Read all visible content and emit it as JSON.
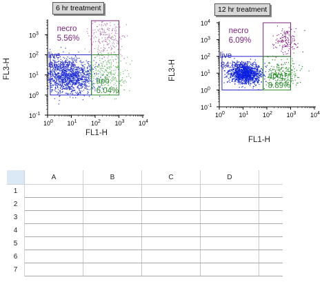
{
  "chart_data": [
    {
      "type": "scatter",
      "title": "6 hr treatment",
      "xlabel": "FL1-H",
      "ylabel": "FL3-H",
      "xscale": "log",
      "yscale": "log",
      "xlim": [
        1,
        10000
      ],
      "ylim": [
        0.1,
        5000
      ],
      "x_ticks": [
        "10",
        "10",
        "10",
        "10",
        "10"
      ],
      "x_tick_exponents": [
        "0",
        "1",
        "2",
        "3",
        "4"
      ],
      "y_ticks": [
        "10",
        "10",
        "10",
        "10",
        "10"
      ],
      "y_tick_exponents": [
        "-1",
        "0",
        "1",
        "2",
        "3"
      ],
      "grid": false,
      "gates": [
        {
          "name": "necro",
          "percent": "5.56%",
          "color": "#7a1f7a",
          "x_range": [
            70,
            1000
          ],
          "y_range": [
            100,
            5000
          ]
        },
        {
          "name": "live",
          "percent": "86.93%",
          "color": "#2424cc",
          "x_range": [
            1.3,
            70
          ],
          "y_range": [
            1,
            100
          ]
        },
        {
          "name": "apo",
          "percent": "6.04%",
          "color": "#2a8a2a",
          "x_range": [
            70,
            1000
          ],
          "y_range": [
            1,
            100
          ]
        }
      ],
      "populations": [
        {
          "gate": "live",
          "color": "#1f2fd8",
          "center": [
            8,
            9
          ],
          "spread": [
            0.55,
            0.42
          ],
          "count": 1400
        },
        {
          "gate": "apo",
          "color": "#66b866",
          "center": [
            320,
            12
          ],
          "spread": [
            0.4,
            0.45
          ],
          "count": 260
        },
        {
          "gate": "necro",
          "color": "#b07fb0",
          "center": [
            300,
            700
          ],
          "spread": [
            0.38,
            0.5
          ],
          "count": 220
        }
      ]
    },
    {
      "type": "scatter",
      "title": "12 hr treatment",
      "xlabel": "FL1-H",
      "ylabel": "FL3-H",
      "xscale": "log",
      "yscale": "log",
      "xlim": [
        1,
        10000
      ],
      "ylim": [
        0.1,
        10000
      ],
      "x_ticks": [
        "10",
        "10",
        "10",
        "10",
        "10"
      ],
      "x_tick_exponents": [
        "0",
        "1",
        "2",
        "3",
        "4"
      ],
      "y_ticks": [
        "10",
        "10",
        "10",
        "10",
        "10",
        "10"
      ],
      "y_tick_exponents": [
        "-1",
        "0",
        "1",
        "2",
        "3",
        "4"
      ],
      "grid": false,
      "gates": [
        {
          "name": "necro",
          "percent": "6.09%",
          "color": "#7a1f7a",
          "x_range": [
            70,
            1000
          ],
          "y_range": [
            100,
            10000
          ]
        },
        {
          "name": "live",
          "percent": "84.05%",
          "color": "#2424cc",
          "x_range": [
            1.3,
            70
          ],
          "y_range": [
            1,
            100
          ]
        },
        {
          "name": "apo",
          "percent": "8.89%",
          "color": "#2a8a2a",
          "x_range": [
            70,
            1000
          ],
          "y_range": [
            1,
            100
          ]
        }
      ],
      "populations": [
        {
          "gate": "live",
          "color": "#0a1fe0",
          "center": [
            12,
            10
          ],
          "spread": [
            0.35,
            0.3
          ],
          "count": 1300
        },
        {
          "gate": "apo",
          "color": "#1a8a1a",
          "center": [
            500,
            10
          ],
          "spread": [
            0.35,
            0.4
          ],
          "count": 220
        },
        {
          "gate": "necro",
          "color": "#8a1a8a",
          "center": [
            550,
            800
          ],
          "spread": [
            0.25,
            0.45
          ],
          "count": 140
        }
      ]
    }
  ],
  "spreadsheet": {
    "columns": [
      "A",
      "B",
      "C",
      "D",
      ""
    ],
    "rows": [
      "1",
      "2",
      "3",
      "4",
      "5",
      "6",
      "7"
    ]
  },
  "colors": {
    "live": "#2424cc",
    "apo": "#2a8a2a",
    "necro": "#7a1f7a"
  }
}
